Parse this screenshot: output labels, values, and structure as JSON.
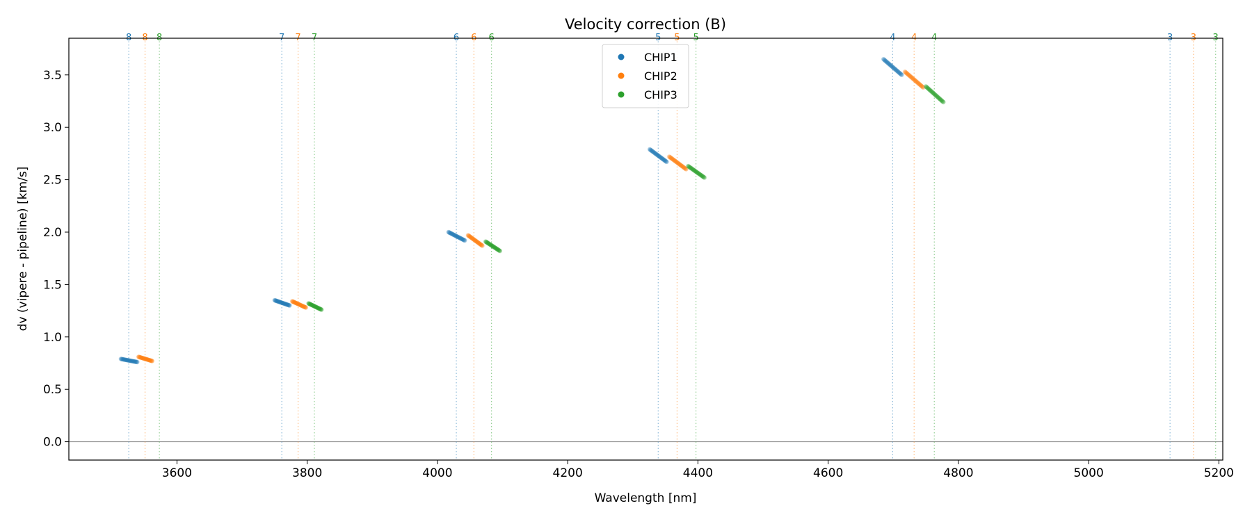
{
  "chart_data": {
    "type": "scatter",
    "title": "Velocity correction (B)",
    "xlabel": "Wavelength [nm]",
    "ylabel": "dv (vipere - pipeline) [km/s]",
    "xlim": [
      3434,
      5206
    ],
    "ylim": [
      -0.175,
      3.85
    ],
    "xticks": [
      3600,
      3800,
      4000,
      4200,
      4400,
      4600,
      4800,
      5000,
      5200
    ],
    "yticks": [
      0.0,
      0.5,
      1.0,
      1.5,
      2.0,
      2.5,
      3.0,
      3.5
    ],
    "grid": false,
    "legend_placement": "upper-center",
    "zero_line": 0.0,
    "series": [
      {
        "name": "CHIP1",
        "color": "#1f77b4",
        "segments": [
          {
            "order": 8,
            "x": [
              3514,
              3539
            ],
            "y": [
              0.79,
              0.76
            ]
          },
          {
            "order": 7,
            "x": [
              3750,
              3773
            ],
            "y": [
              1.35,
              1.3
            ]
          },
          {
            "order": 6,
            "x": [
              4017,
              4042
            ],
            "y": [
              2.0,
              1.92
            ]
          },
          {
            "order": 5,
            "x": [
              4326,
              4352
            ],
            "y": [
              2.79,
              2.67
            ]
          },
          {
            "order": 4,
            "x": [
              4685,
              4713
            ],
            "y": [
              3.65,
              3.5
            ]
          }
        ]
      },
      {
        "name": "CHIP2",
        "color": "#ff7f0e",
        "segments": [
          {
            "order": 8,
            "x": [
              3541,
              3562
            ],
            "y": [
              0.81,
              0.77
            ]
          },
          {
            "order": 7,
            "x": [
              3777,
              3798
            ],
            "y": [
              1.34,
              1.28
            ]
          },
          {
            "order": 6,
            "x": [
              4047,
              4069
            ],
            "y": [
              1.97,
              1.87
            ]
          },
          {
            "order": 5,
            "x": [
              4356,
              4382
            ],
            "y": [
              2.72,
              2.6
            ]
          },
          {
            "order": 4,
            "x": [
              4718,
              4746
            ],
            "y": [
              3.53,
              3.38
            ]
          }
        ]
      },
      {
        "name": "CHIP3",
        "color": "#2ca02c",
        "segments": [
          {
            "order": 7,
            "x": [
              3802,
              3822
            ],
            "y": [
              1.32,
              1.26
            ]
          },
          {
            "order": 6,
            "x": [
              4074,
              4096
            ],
            "y": [
              1.91,
              1.82
            ]
          },
          {
            "order": 5,
            "x": [
              4385,
              4410
            ],
            "y": [
              2.63,
              2.52
            ]
          },
          {
            "order": 4,
            "x": [
              4750,
              4777
            ],
            "y": [
              3.39,
              3.24
            ]
          }
        ]
      }
    ],
    "order_markers": [
      {
        "label": "8",
        "positions": [
          3526,
          3551,
          3573
        ]
      },
      {
        "label": "7",
        "positions": [
          3761,
          3786,
          3811
        ]
      },
      {
        "label": "6",
        "positions": [
          4029,
          4056,
          4083
        ]
      },
      {
        "label": "5",
        "positions": [
          4339,
          4368,
          4397
        ]
      },
      {
        "label": "4",
        "positions": [
          4699,
          4732,
          4763
        ]
      },
      {
        "label": "3",
        "positions": [
          5125,
          5161,
          5195
        ]
      }
    ]
  }
}
